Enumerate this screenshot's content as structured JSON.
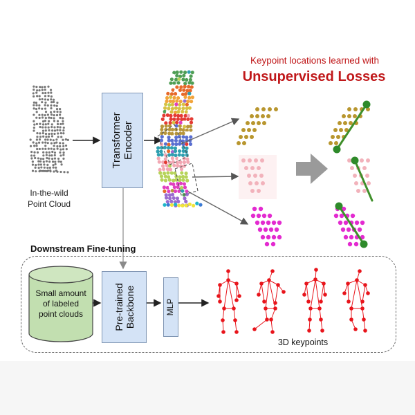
{
  "input_caption": [
    "In-the-wild",
    "Point Cloud"
  ],
  "encoder_label": [
    "Transformer",
    "Encoder"
  ],
  "learned_caption": "Keypoint locations learned with",
  "losses_title": "Unsupervised Losses",
  "finetune_title": "Downstream Fine-tuning",
  "dataset_label": [
    "Small amount",
    "of labeled",
    "point clouds"
  ],
  "backbone_label": [
    "Pre-trained",
    "Backbone"
  ],
  "mlp_label": "MLP",
  "output_caption": "3D keypoints",
  "colors": {
    "box_fill": "#d4e3f6",
    "box_border": "#7f95b3",
    "cylinder_fill": "#c2dfb0",
    "title_red": "#c0181a",
    "keypoint_red": "#e8141b",
    "skeleton_green": "#3f8f2a"
  },
  "icons": [
    "point-cloud-icon",
    "segmented-cloud-icon",
    "cylinder-icon",
    "skeleton-icon",
    "big-gray-arrow-icon"
  ]
}
